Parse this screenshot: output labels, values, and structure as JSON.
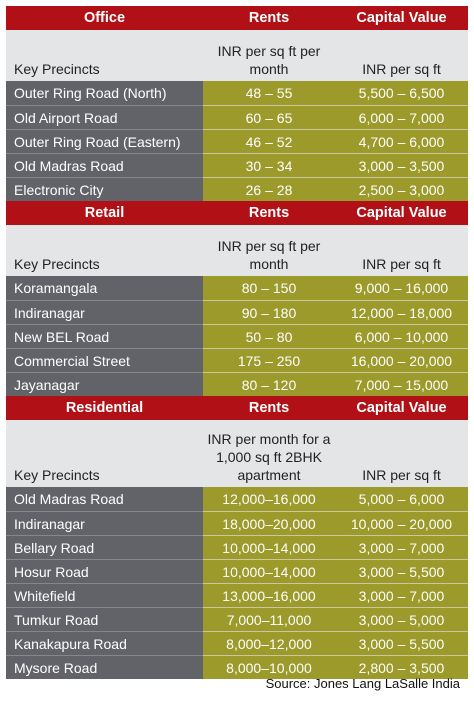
{
  "sections": [
    {
      "title": "Office",
      "rent_header": "Rents",
      "cap_header": "Capital Value",
      "key_label": "Key Precincts",
      "rent_unit": "INR per sq ft per month",
      "cap_unit": "INR per sq ft",
      "rows": [
        {
          "name": "Outer Ring Road (North)",
          "rent": "48 – 55",
          "cap": "5,500 – 6,500"
        },
        {
          "name": "Old Airport Road",
          "rent": "60 – 65",
          "cap": "6,000 – 7,000"
        },
        {
          "name": "Outer Ring Road (Eastern)",
          "rent": "46 – 52",
          "cap": "4,700 – 6,000"
        },
        {
          "name": "Old Madras Road",
          "rent": "30 – 34",
          "cap": "3,000 – 3,500"
        },
        {
          "name": "Electronic City",
          "rent": "26 – 28",
          "cap": "2,500 – 3,000"
        }
      ]
    },
    {
      "title": "Retail",
      "rent_header": "Rents",
      "cap_header": "Capital Value",
      "key_label": "Key Precincts",
      "rent_unit": "INR per sq ft per month",
      "cap_unit": "INR per sq ft",
      "rows": [
        {
          "name": "Koramangala",
          "rent": "80 – 150",
          "cap": "9,000 – 16,000"
        },
        {
          "name": "Indiranagar",
          "rent": "90 – 180",
          "cap": "12,000 – 18,000"
        },
        {
          "name": "New BEL Road",
          "rent": "50 – 80",
          "cap": "6,000 – 10,000"
        },
        {
          "name": "Commercial Street",
          "rent": "175 – 250",
          "cap": "16,000 – 20,000"
        },
        {
          "name": "Jayanagar",
          "rent": "80 – 120",
          "cap": "7,000 – 15,000"
        }
      ]
    },
    {
      "title": "Residential",
      "rent_header": "Rents",
      "cap_header": "Capital Value",
      "key_label": "Key Precincts",
      "rent_unit": "INR per month for a 1,000 sq ft 2BHK apartment",
      "cap_unit": "INR per sq ft",
      "rows": [
        {
          "name": "Old Madras Road",
          "rent": "12,000–16,000",
          "cap": "5,000 –  6,000"
        },
        {
          "name": "Indiranagar",
          "rent": "18,000–20,000",
          "cap": "10,000 – 20,000"
        },
        {
          "name": "Bellary Road",
          "rent": "10,000–14,000",
          "cap": "3,000 – 7,000"
        },
        {
          "name": "Hosur Road",
          "rent": "10,000–14,000",
          "cap": "3,000 – 5,500"
        },
        {
          "name": "Whitefield",
          "rent": "13,000–16,000",
          "cap": "3,000 – 7,000"
        },
        {
          "name": "Tumkur Road",
          "rent": "7,000–11,000",
          "cap": "3,000 – 5,000"
        },
        {
          "name": "Kanakapura Road",
          "rent": "8,000–12,000",
          "cap": "3,000 – 5,500"
        },
        {
          "name": "Mysore Road",
          "rent": "8,000–10,000",
          "cap": "2,800 – 3,500"
        }
      ]
    }
  ],
  "source": "Source: Jones Lang LaSalle India"
}
